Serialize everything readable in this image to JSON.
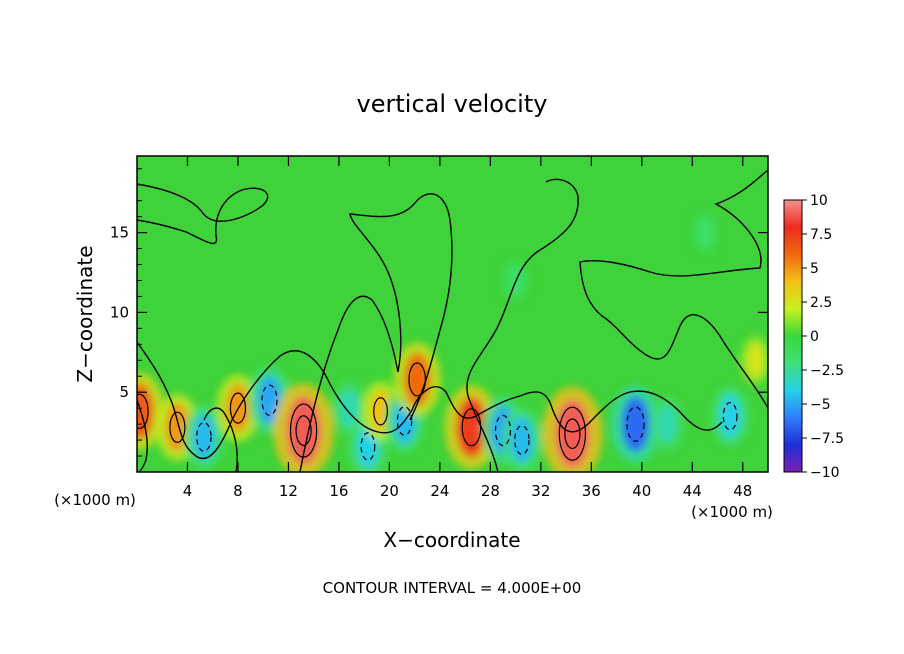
{
  "chart_data": {
    "type": "heatmap",
    "title": "vertical velocity",
    "xlabel": "X−coordinate",
    "ylabel": "Z−coordinate",
    "x_unit_left": "(×1000 m)",
    "x_unit_right": "(×1000 m)",
    "footer": "CONTOUR INTERVAL = 4.000E+00",
    "xlim": [
      0,
      50
    ],
    "ylim": [
      0,
      19.8
    ],
    "xticks": [
      4,
      8,
      12,
      16,
      20,
      24,
      28,
      32,
      36,
      40,
      44,
      48
    ],
    "xtick_labels": [
      "4",
      "8",
      "12",
      "16",
      "20",
      "24",
      "28",
      "32",
      "36",
      "40",
      "44",
      "48"
    ],
    "yticks": [
      5,
      10,
      15
    ],
    "ytick_labels": [
      "5",
      "10",
      "15"
    ],
    "contour_interval": 4.0,
    "colorbar": {
      "vmin": -10,
      "vmax": 10,
      "ticks": [
        10,
        7.5,
        5,
        2.5,
        0,
        -2.5,
        -5,
        -7.5,
        -10
      ],
      "tick_labels": [
        "10",
        "7.5",
        "5",
        "2.5",
        "0",
        "−2.5",
        "−5",
        "−7.5",
        "−10"
      ],
      "colors": [
        "#7d1fb4",
        "#1f2fd6",
        "#2e7dff",
        "#25d0e8",
        "#3fe07a",
        "#3ad83a",
        "#c8f020",
        "#f6c018",
        "#f06a10",
        "#f02a1e",
        "#f59090"
      ]
    },
    "features": [
      {
        "x": 0.2,
        "z": 3.8,
        "value": 6.5
      },
      {
        "x": 3.2,
        "z": 2.8,
        "value": 5.0
      },
      {
        "x": 5.3,
        "z": 2.2,
        "value": -4.5
      },
      {
        "x": 8.0,
        "z": 4.0,
        "value": 5.0
      },
      {
        "x": 10.5,
        "z": 4.5,
        "value": -5.0
      },
      {
        "x": 13.2,
        "z": 2.6,
        "value": 9.0
      },
      {
        "x": 16.8,
        "z": 4.0,
        "value": -3.0
      },
      {
        "x": 18.3,
        "z": 1.6,
        "value": -4.0
      },
      {
        "x": 19.3,
        "z": 3.8,
        "value": 4.0
      },
      {
        "x": 21.2,
        "z": 3.2,
        "value": -4.5
      },
      {
        "x": 22.2,
        "z": 5.8,
        "value": 6.0
      },
      {
        "x": 26.5,
        "z": 2.8,
        "value": 7.5
      },
      {
        "x": 29.0,
        "z": 2.6,
        "value": -5.0
      },
      {
        "x": 30.5,
        "z": 2.0,
        "value": -4.5
      },
      {
        "x": 34.5,
        "z": 2.4,
        "value": 9.0
      },
      {
        "x": 39.5,
        "z": 3.0,
        "value": -6.5
      },
      {
        "x": 42.0,
        "z": 3.0,
        "value": -3.0
      },
      {
        "x": 47.0,
        "z": 3.5,
        "value": -4.0
      },
      {
        "x": 49.0,
        "z": 7.0,
        "value": 2.5
      },
      {
        "x": 30.0,
        "z": 12.0,
        "value": -1.5
      },
      {
        "x": 45.0,
        "z": 15.0,
        "value": -1.5
      }
    ]
  }
}
